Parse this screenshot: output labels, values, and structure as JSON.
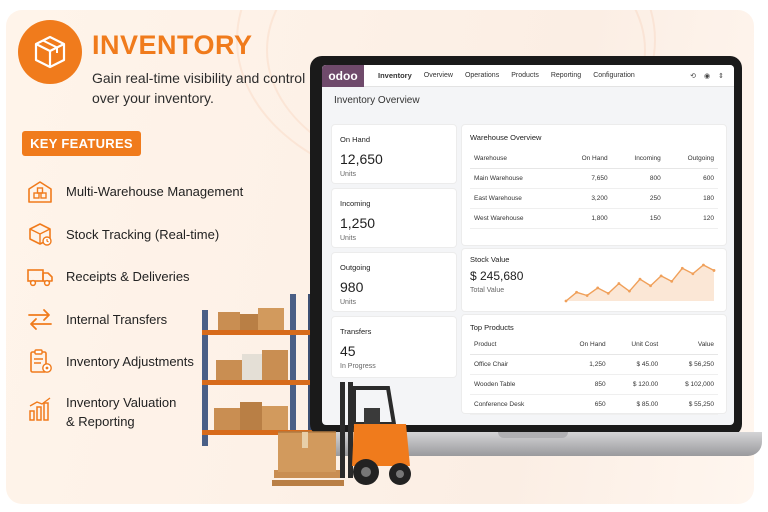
{
  "header": {
    "title": "INVENTORY",
    "subtitle": "Gain real-time visibility and control over your inventory."
  },
  "key_features": {
    "badge": "KEY FEATURES",
    "items": [
      {
        "label": "Multi-Warehouse Management",
        "icon": "warehouse-icon"
      },
      {
        "label": "Stock Tracking (Real-time)",
        "icon": "stock-tracking-icon"
      },
      {
        "label": "Receipts & Deliveries",
        "icon": "truck-icon"
      },
      {
        "label": "Internal Transfers",
        "icon": "transfer-arrows-icon"
      },
      {
        "label": "Inventory Adjustments",
        "icon": "clipboard-adjust-icon"
      },
      {
        "label": "Inventory Valuation & Reporting",
        "icon": "bar-chart-icon"
      }
    ]
  },
  "app": {
    "brand": "odoo",
    "nav": [
      "Inventory",
      "Overview",
      "Operations",
      "Products",
      "Reporting",
      "Configuration"
    ],
    "top_icons": [
      "⟲",
      "◉",
      "⇕"
    ],
    "page_title": "Inventory Overview",
    "kpis": [
      {
        "label": "On Hand",
        "value": "12,650",
        "sub": "Units"
      },
      {
        "label": "Incoming",
        "value": "1,250",
        "sub": "Units"
      },
      {
        "label": "Outgoing",
        "value": "980",
        "sub": "Units"
      },
      {
        "label": "Transfers",
        "value": "45",
        "sub": "In Progress"
      }
    ],
    "warehouse_overview": {
      "title": "Warehouse Overview",
      "columns": [
        "Warehouse",
        "On Hand",
        "Incoming",
        "Outgoing"
      ],
      "rows": [
        [
          "Main Warehouse",
          "7,650",
          "800",
          "600"
        ],
        [
          "East Warehouse",
          "3,200",
          "250",
          "180"
        ],
        [
          "West Warehouse",
          "1,800",
          "150",
          "120"
        ]
      ]
    },
    "stock_value": {
      "title": "Stock Value",
      "value": "$ 245,680",
      "label": "Total Value",
      "accent": "#f0a05a",
      "trend": [
        22,
        30,
        27,
        34,
        29,
        38,
        31,
        42,
        36,
        45,
        40,
        52,
        47,
        55,
        50
      ]
    },
    "top_products": {
      "title": "Top Products",
      "columns": [
        "Product",
        "On Hand",
        "Unit Cost",
        "Value"
      ],
      "rows": [
        [
          "Office Chair",
          "1,250",
          "$ 45.00",
          "$ 56,250"
        ],
        [
          "Wooden Table",
          "850",
          "$ 120.00",
          "$ 102,000"
        ],
        [
          "Conference Desk",
          "650",
          "$ 85.00",
          "$ 55,250"
        ]
      ]
    }
  },
  "colors": {
    "accent": "#f07b1c",
    "brand": "#6f4a6b",
    "background": "#fdf1e7"
  }
}
